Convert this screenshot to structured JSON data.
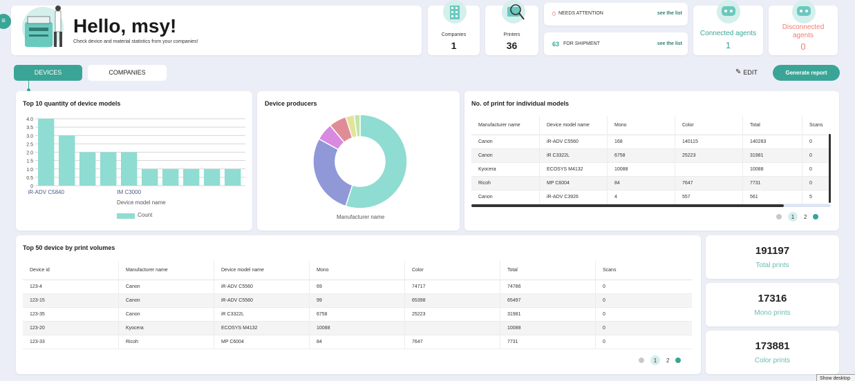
{
  "header": {
    "greeting": "Hello, msy!",
    "subtitle": "Check device and material statistics from your companies!"
  },
  "stats": {
    "companies": {
      "label": "Companies",
      "value": "1"
    },
    "printers": {
      "label": "Printers",
      "value": "36"
    },
    "attention": {
      "count": "0",
      "label": "NEEDS ATTENTION",
      "link": "see the list"
    },
    "shipment": {
      "count": "63",
      "label": "FOR SHIPMENT",
      "link": "see the list"
    },
    "connected": {
      "label": "Connected agents",
      "value": "1"
    },
    "disconnected": {
      "label": "Disconnected agents",
      "value": "0"
    }
  },
  "tabs": {
    "devices": "DEVICES",
    "companies": "COMPANIES"
  },
  "actions": {
    "edit": "EDIT",
    "generate": "Generate report"
  },
  "colors": {
    "accent": "#3aa596",
    "bar": "#8fdcd2",
    "danger": "#f17d6e"
  },
  "chart_data": [
    {
      "type": "bar",
      "title": "Top 10 quantity of device models",
      "categories": [
        "iR-ADV C5840",
        "",
        "",
        "",
        "IM C3000",
        "",
        "",
        "",
        "",
        ""
      ],
      "values": [
        4,
        3,
        2,
        2,
        2,
        1,
        1,
        1,
        1,
        1
      ],
      "ylim": [
        0,
        4
      ],
      "yticks": [
        "0",
        "0.5",
        "1.0",
        "1.5",
        "2.0",
        "2.5",
        "3.0",
        "3.5",
        "4.0"
      ],
      "xlabel": "Device model name",
      "legend": "Count",
      "grid": true
    },
    {
      "type": "pie",
      "title": "Device producers",
      "xlabel": "Manufacturer name",
      "values": [
        55,
        28,
        6,
        6,
        3,
        2
      ],
      "colors": [
        "#8fdcd2",
        "#9098d8",
        "#d78ae0",
        "#e08c96",
        "#e2e49a",
        "#bfe6a8"
      ]
    }
  ],
  "models_table": {
    "title": "No. of print for individual models",
    "headers": [
      "Manufacturer name",
      "Device model name",
      "Mono",
      "Color",
      "Total",
      "Scans"
    ],
    "rows": [
      [
        "Canon",
        "iR-ADV C5560",
        "168",
        "140115",
        "140283",
        "0"
      ],
      [
        "Canon",
        "iR C3322L",
        "6758",
        "25223",
        "31981",
        "0"
      ],
      [
        "Kyocera",
        "ECOSYS M4132",
        "10088",
        "",
        "10088",
        "0"
      ],
      [
        "Ricoh",
        "MP C6004",
        "84",
        "7647",
        "7731",
        "0"
      ],
      [
        "Canon",
        "iR-ADV C3926",
        "4",
        "557",
        "561",
        "5"
      ]
    ],
    "pages": [
      "1",
      "2"
    ]
  },
  "devices_table": {
    "title": "Top 50 device by print volumes",
    "headers": [
      "Device id",
      "Manufacturer name",
      "Device model name",
      "Mono",
      "Color",
      "Total",
      "Scans"
    ],
    "rows": [
      [
        "123-4",
        "Canon",
        "iR-ADV C5560",
        "69",
        "74717",
        "74786",
        "0"
      ],
      [
        "123-15",
        "Canon",
        "iR-ADV C5560",
        "99",
        "65398",
        "65497",
        "0"
      ],
      [
        "123-35",
        "Canon",
        "iR C3322L",
        "6758",
        "25223",
        "31981",
        "0"
      ],
      [
        "123-20",
        "Kyocera",
        "ECOSYS M4132",
        "10088",
        "",
        "10088",
        "0"
      ],
      [
        "123-33",
        "Ricoh",
        "MP C6004",
        "84",
        "7647",
        "7731",
        "0"
      ]
    ],
    "pages": [
      "1",
      "2"
    ]
  },
  "totals": {
    "total": {
      "value": "191197",
      "label": "Total prints"
    },
    "mono": {
      "value": "17316",
      "label": "Mono prints"
    },
    "color": {
      "value": "173881",
      "label": "Color prints"
    }
  },
  "tooltip": "Show desktop"
}
